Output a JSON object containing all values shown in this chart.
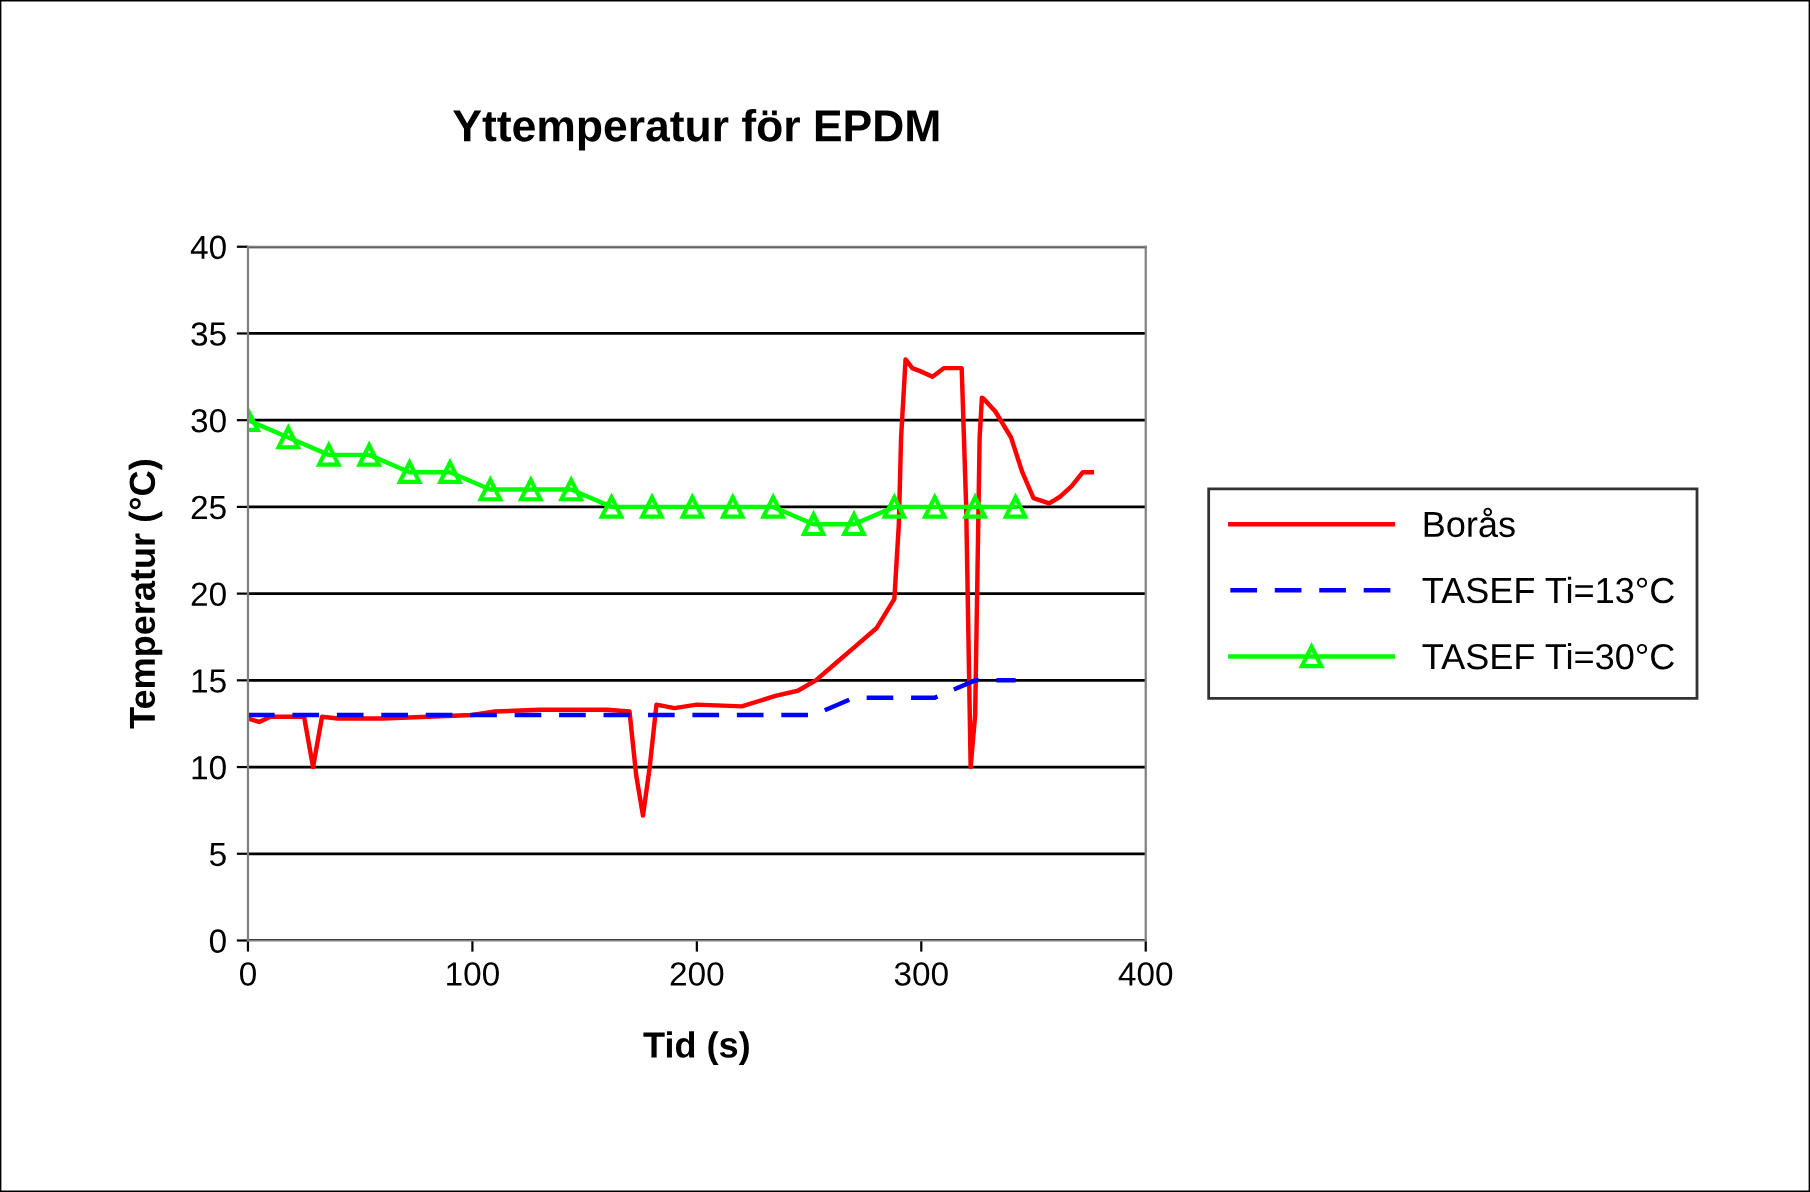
{
  "chart_data": {
    "type": "line",
    "title": "Yttemperatur för EPDM",
    "xlabel": "Tid (s)",
    "ylabel": "Temperatur (°C)",
    "xlim": [
      0,
      400
    ],
    "xticks": [
      0,
      100,
      200,
      300,
      400
    ],
    "ylim": [
      0,
      40
    ],
    "yticks": [
      0,
      5,
      10,
      15,
      20,
      25,
      30,
      35,
      40
    ],
    "grid": "y",
    "legend": "right",
    "series": [
      {
        "name": "Borås",
        "color": "#ff0000",
        "line_style": "solid",
        "marker": "none",
        "x": [
          0,
          5,
          10,
          25,
          29,
          33,
          40,
          60,
          80,
          100,
          110,
          130,
          160,
          170,
          173,
          176,
          179,
          182,
          190,
          200,
          220,
          235,
          245,
          253,
          262,
          271,
          280,
          288,
          290,
          291,
          293,
          296,
          300,
          305,
          310,
          318,
          320,
          322,
          324,
          326,
          327,
          328,
          333,
          340,
          345,
          350,
          357,
          362,
          367,
          372,
          376
        ],
        "values": [
          12.8,
          12.6,
          12.9,
          12.9,
          10,
          12.9,
          12.8,
          12.8,
          12.9,
          13,
          13.2,
          13.3,
          13.3,
          13.2,
          9.5,
          7.2,
          10,
          13.6,
          13.4,
          13.6,
          13.5,
          14.1,
          14.4,
          15,
          16,
          17,
          18,
          19.7,
          24,
          29,
          33.5,
          33,
          32.8,
          32.5,
          33,
          33,
          25,
          10,
          13,
          29,
          31.3,
          31.2,
          30.5,
          29,
          27,
          25.5,
          25.2,
          25.6,
          26.2,
          27,
          27
        ]
      },
      {
        "name": "TASEF Ti=13°C",
        "color": "#0000ff",
        "line_style": "dashed",
        "marker": "none",
        "x": [
          0,
          252,
          270,
          306,
          324,
          342
        ],
        "values": [
          13,
          13,
          14,
          14,
          15,
          15
        ]
      },
      {
        "name": "TASEF Ti=30°C",
        "color": "#00ff00",
        "line_style": "solid",
        "marker": "triangle",
        "x": [
          0,
          18,
          36,
          54,
          72,
          90,
          108,
          126,
          144,
          162,
          180,
          198,
          216,
          234,
          252,
          270,
          288,
          306,
          324,
          342
        ],
        "values": [
          30,
          29,
          28,
          28,
          27,
          27,
          26,
          26,
          26,
          25,
          25,
          25,
          25,
          25,
          24,
          24,
          25,
          25,
          25,
          25
        ]
      }
    ]
  }
}
